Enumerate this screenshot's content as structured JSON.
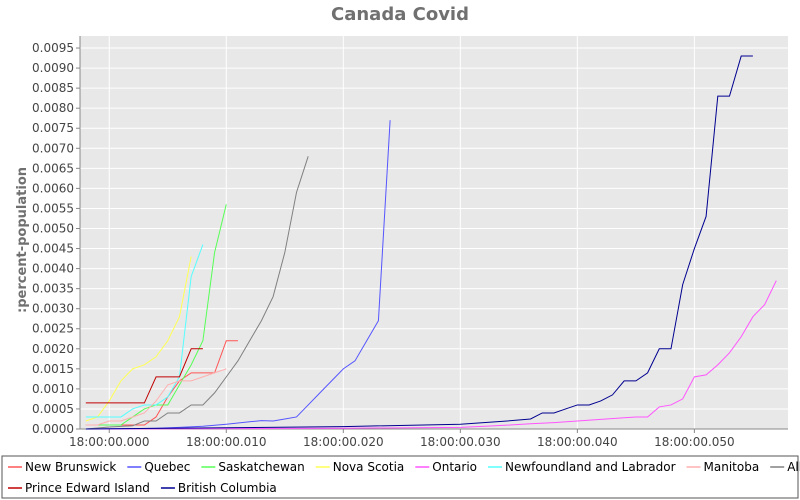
{
  "chart_data": {
    "type": "line",
    "title": "Canada Covid",
    "xlabel": "",
    "ylabel": ":percent-population",
    "xlim": [
      -2.5,
      58.0
    ],
    "ylim": [
      0,
      0.0098
    ],
    "yticks": [
      0,
      0.0005,
      0.001,
      0.0015,
      0.002,
      0.0025,
      0.003,
      0.0035,
      0.004,
      0.0045,
      0.005,
      0.0055,
      0.006,
      0.0065,
      0.007,
      0.0075,
      0.008,
      0.0085,
      0.009,
      0.0095
    ],
    "ytick_labels": [
      "0.0000",
      "0.0005",
      "0.0010",
      "0.0015",
      "0.0020",
      "0.0025",
      "0.0030",
      "0.0035",
      "0.0040",
      "0.0045",
      "0.0050",
      "0.0055",
      "0.0060",
      "0.0065",
      "0.0070",
      "0.0075",
      "0.0080",
      "0.0085",
      "0.0090",
      "0.0095"
    ],
    "xticks": [
      0,
      10,
      20,
      30,
      40,
      50
    ],
    "xtick_labels": [
      "18:00:00.000",
      "18:00:00.010",
      "18:00:00.020",
      "18:00:00.030",
      "18:00:00.040",
      "18:00:00.050"
    ],
    "grid": true,
    "legend_position": "bottom",
    "series": [
      {
        "name": "New Brunswick",
        "color": "#ff5555",
        "x": [
          -2,
          -1,
          0,
          1,
          2,
          3,
          4,
          5,
          6,
          7,
          8,
          9,
          10,
          11
        ],
        "y": [
          0.0001,
          0.0001,
          0.0001,
          0.0001,
          0.0001,
          0.0001,
          0.0003,
          0.0008,
          0.0012,
          0.0014,
          0.0014,
          0.0014,
          0.0022,
          0.0022
        ]
      },
      {
        "name": "Quebec",
        "color": "#5555ff",
        "x": [
          -2,
          2,
          4,
          6,
          8,
          10,
          12,
          13,
          14,
          15,
          16,
          17,
          18,
          19,
          20,
          21,
          22,
          23,
          24
        ],
        "y": [
          0.0,
          1e-05,
          2e-05,
          4e-05,
          7e-05,
          0.00012,
          0.00018,
          0.00021,
          0.0002,
          0.00025,
          0.0003,
          0.0006,
          0.0009,
          0.0012,
          0.0015,
          0.0017,
          0.0022,
          0.0027,
          0.0077
        ]
      },
      {
        "name": "Saskatchewan",
        "color": "#55ff55",
        "x": [
          -2,
          -1,
          0,
          1,
          2,
          3,
          4,
          5,
          6,
          7,
          8,
          9,
          10
        ],
        "y": [
          0.0001,
          0.0001,
          0.0001,
          0.0001,
          0.0003,
          0.0005,
          0.0006,
          0.0006,
          0.0011,
          0.0016,
          0.0022,
          0.0044,
          0.0056
        ]
      },
      {
        "name": "Nova Scotia",
        "color": "#ffff55",
        "x": [
          -2,
          -1,
          0,
          1,
          2,
          3,
          4,
          5,
          6,
          7
        ],
        "y": [
          0.0002,
          0.0003,
          0.0007,
          0.0012,
          0.0015,
          0.0016,
          0.0018,
          0.0022,
          0.0028,
          0.0043
        ]
      },
      {
        "name": "Ontario",
        "color": "#ff55ff",
        "x": [
          -2,
          10,
          20,
          30,
          33,
          36,
          38,
          40,
          42,
          44,
          45,
          46,
          47,
          48,
          49,
          50,
          51,
          52,
          53,
          54,
          55,
          56,
          57
        ],
        "y": [
          0.0,
          1e-05,
          2e-05,
          4e-05,
          8e-05,
          0.00013,
          0.00016,
          0.0002,
          0.00024,
          0.00028,
          0.0003,
          0.0003,
          0.00055,
          0.0006,
          0.00075,
          0.0013,
          0.00135,
          0.0016,
          0.0019,
          0.0023,
          0.0028,
          0.0031,
          0.0037
        ]
      },
      {
        "name": "Newfoundland and Labrador",
        "color": "#55ffff",
        "x": [
          -2,
          -1,
          0,
          1,
          2,
          3,
          4,
          5,
          6,
          7,
          8
        ],
        "y": [
          0.0003,
          0.0003,
          0.0003,
          0.0003,
          0.0005,
          0.0006,
          0.0006,
          0.0008,
          0.0013,
          0.0038,
          0.0046
        ]
      },
      {
        "name": "Manitoba",
        "color": "#ffafaf",
        "x": [
          -2,
          -1,
          0,
          1,
          2,
          3,
          4,
          5,
          6,
          7,
          8,
          9,
          10
        ],
        "y": [
          0.0001,
          0.0001,
          0.0002,
          0.0002,
          0.0003,
          0.0004,
          0.0007,
          0.0011,
          0.0012,
          0.0012,
          0.0013,
          0.0014,
          0.0015
        ]
      },
      {
        "name": "Alberta",
        "color": "#808080",
        "x": [
          -2,
          0,
          2,
          3,
          4,
          5,
          6,
          7,
          8,
          9,
          10,
          11,
          12,
          13,
          14,
          15,
          16,
          17
        ],
        "y": [
          0.0,
          5e-05,
          8e-05,
          0.0002,
          0.0002,
          0.0004,
          0.0004,
          0.0006,
          0.0006,
          0.0009,
          0.0013,
          0.0017,
          0.0022,
          0.0027,
          0.0033,
          0.0044,
          0.0059,
          0.0068
        ]
      },
      {
        "name": "Prince Edward Island",
        "color": "#c00000",
        "x": [
          -2,
          -1,
          0,
          1,
          2,
          3,
          4,
          5,
          6,
          7,
          8
        ],
        "y": [
          0.00065,
          0.00065,
          0.00065,
          0.00065,
          0.00065,
          0.00065,
          0.0013,
          0.0013,
          0.0013,
          0.002,
          0.002
        ]
      },
      {
        "name": "British Columbia",
        "color": "#000090",
        "x": [
          -2,
          10,
          20,
          30,
          34,
          36,
          37,
          38,
          39,
          40,
          41,
          42,
          43,
          44,
          45,
          46,
          47,
          48,
          49,
          50,
          51,
          52,
          53,
          54,
          55
        ],
        "y": [
          0.0,
          3e-05,
          6e-05,
          0.00012,
          0.0002,
          0.00025,
          0.0004,
          0.0004,
          0.0005,
          0.0006,
          0.0006,
          0.0007,
          0.00085,
          0.0012,
          0.0012,
          0.0014,
          0.002,
          0.002,
          0.0036,
          0.0045,
          0.0053,
          0.0083,
          0.0083,
          0.0093,
          0.0093
        ]
      }
    ]
  }
}
